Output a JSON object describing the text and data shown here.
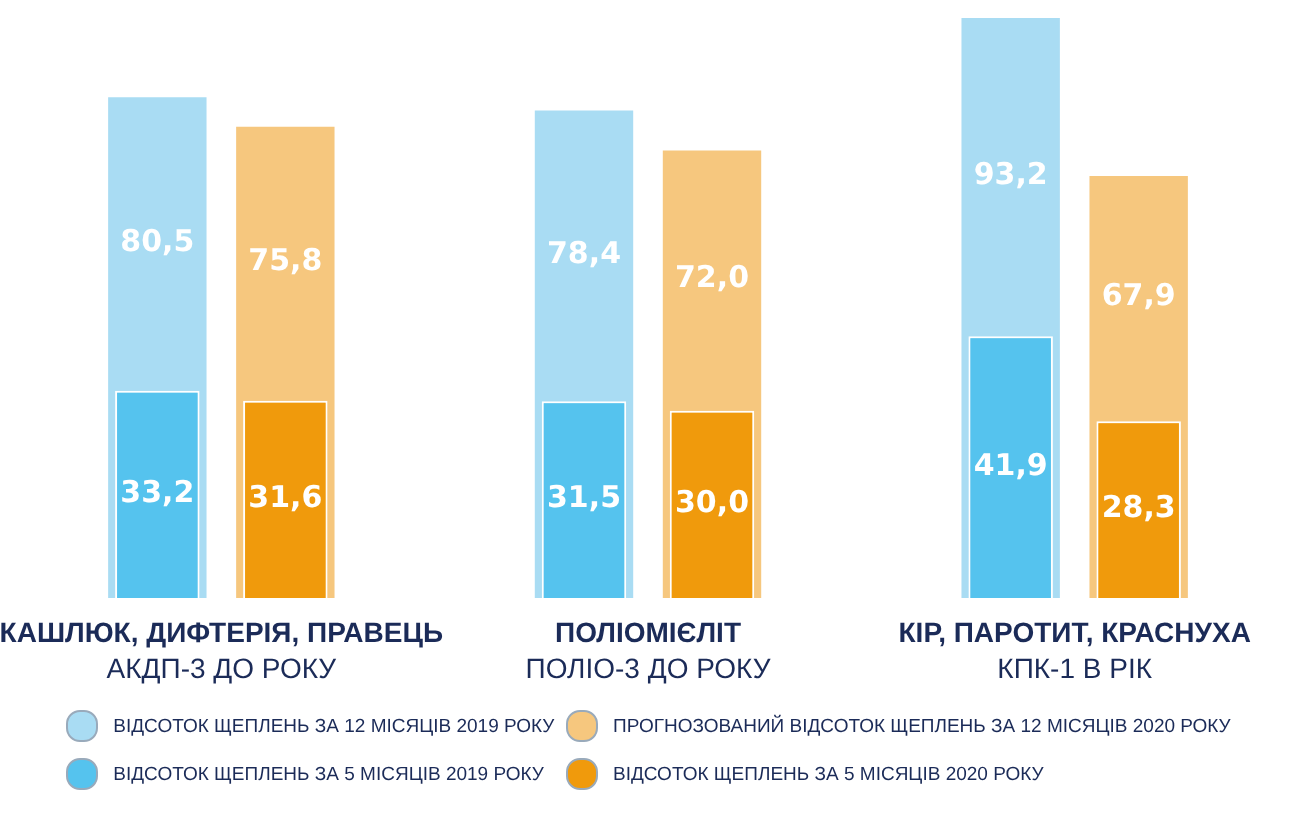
{
  "chart_data": {
    "type": "bar",
    "categories": [
      "КАШЛЮК, ДИФТЕРІЯ, ПРАВЕЦЬ\nАКДП-3 ДО РОКУ",
      "ПОЛІОМІЄЛІТ\nПОЛІО-3 ДО РОКУ",
      "КІР, ПАРОТИТ, КРАСНУХА\nКПК-1 В РІК"
    ],
    "series": [
      {
        "name": "ВІДСОТОК ЩЕПЛЕНЬ ЗА 5 МІСЯЦІВ 2019 РОКУ",
        "color": "#55c3ee",
        "values": [
          33.2,
          31.5,
          41.9
        ],
        "value_labels": [
          "33,2",
          "31,5",
          "41,9"
        ]
      },
      {
        "name": "ВІДСОТОК ЩЕПЛЕНЬ ЗА 12 МІСЯЦІВ 2019 РОКУ",
        "color": "#a9dcf3",
        "values": [
          80.5,
          78.4,
          93.2
        ],
        "value_labels": [
          "80,5",
          "78,4",
          "93,2"
        ]
      },
      {
        "name": "ВІДСОТОК ЩЕПЛЕНЬ ЗА 5 МІСЯЦІВ 2020 РОКУ",
        "color": "#f09a0c",
        "values": [
          31.6,
          30.0,
          28.3
        ],
        "value_labels": [
          "31,6",
          "30,0",
          "28,3"
        ]
      },
      {
        "name": "ПРОГНОЗОВАНИЙ ВІДСОТОК ЩЕПЛЕНЬ ЗА 12 МІСЯЦІВ 2020 РОКУ",
        "color": "#f6c77e",
        "values": [
          75.8,
          72.0,
          67.9
        ],
        "value_labels": [
          "75,8",
          "72,0",
          "67,9"
        ]
      }
    ],
    "legend": "bottom"
  }
}
